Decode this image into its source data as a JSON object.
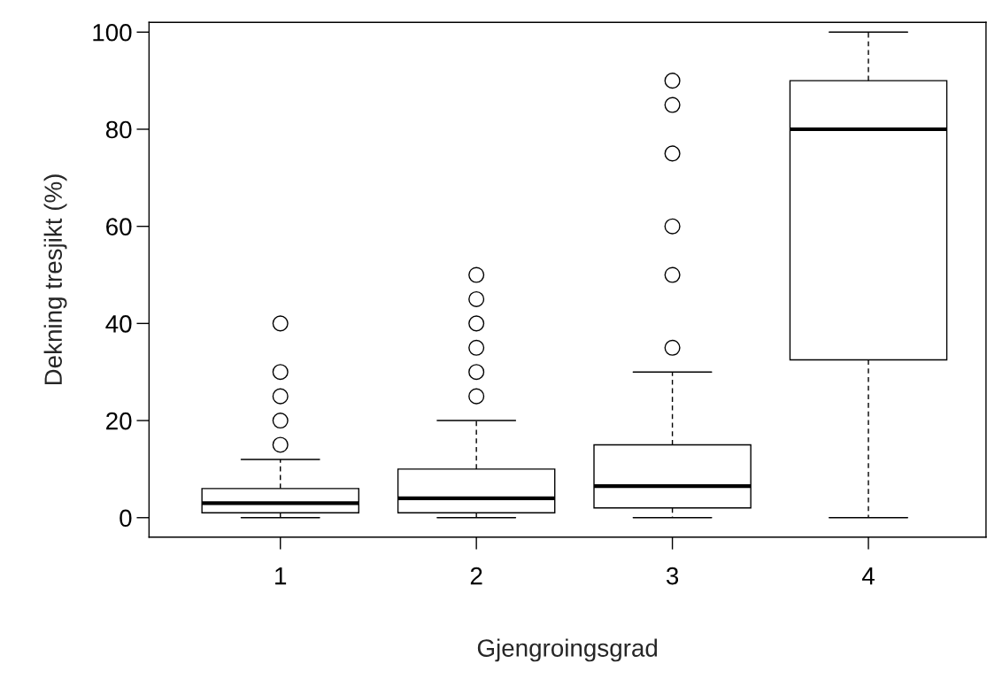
{
  "chart_data": {
    "type": "box",
    "xlabel": "Gjengroingsgrad",
    "ylabel": "Dekning tresjikt (%)",
    "categories": [
      "1",
      "2",
      "3",
      "4"
    ],
    "boxes": [
      {
        "low": 0,
        "q1": 1,
        "median": 3,
        "q3": 6,
        "high": 12,
        "outliers": [
          15,
          20,
          25,
          30,
          40
        ]
      },
      {
        "low": 0,
        "q1": 1,
        "median": 4,
        "q3": 10,
        "high": 20,
        "outliers": [
          25,
          30,
          35,
          40,
          45,
          50
        ]
      },
      {
        "low": 0,
        "q1": 2,
        "median": 6.5,
        "q3": 15,
        "high": 30,
        "outliers": [
          35,
          50,
          60,
          75,
          85,
          90
        ]
      },
      {
        "low": 0,
        "q1": 32.5,
        "median": 80,
        "q3": 90,
        "high": 100
      }
    ],
    "ylim": [
      -4,
      102
    ],
    "yticks": [
      0,
      20,
      40,
      60,
      80,
      100
    ],
    "grid": false
  }
}
